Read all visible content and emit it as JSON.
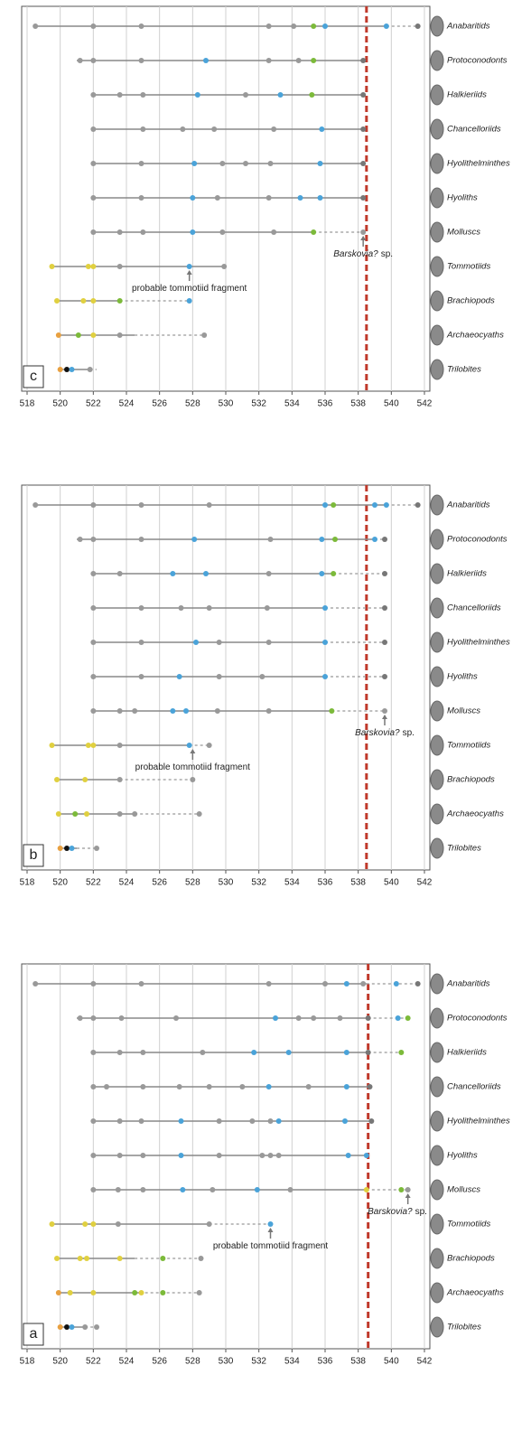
{
  "chart_data": [
    {
      "type": "range",
      "panel_label": "a",
      "xlim": [
        518,
        542
      ],
      "xticks": [
        518,
        520,
        522,
        524,
        526,
        528,
        530,
        532,
        534,
        536,
        538,
        540,
        542
      ],
      "grid": true,
      "boundary": 538.6,
      "boundary_color": "#c0392b",
      "taxa": [
        {
          "name": "Anabaritids",
          "range": [
            518.5,
            538.5
          ],
          "dashed": [
            538.5,
            541.6
          ],
          "points": [
            518.5,
            522,
            524.9,
            532.6,
            536,
            537.3,
            538.3,
            540.3,
            541.6
          ],
          "colors": [
            "#999",
            "#999",
            "#999",
            "#999",
            "#999",
            "#4aa3d9",
            "#999",
            "#4aa3d9",
            "#777"
          ]
        },
        {
          "name": "Protoconodonts",
          "range": [
            521,
            538.6
          ],
          "dashed": [
            538.6,
            541
          ],
          "points": [
            521.2,
            522,
            523.7,
            527,
            533,
            534.4,
            535.3,
            536.9,
            538.6,
            540.4,
            541
          ],
          "colors": [
            "#999",
            "#999",
            "#999",
            "#999",
            "#4aa3d9",
            "#999",
            "#999",
            "#999",
            "#777",
            "#4aa3d9",
            "#7cba3a"
          ]
        },
        {
          "name": "Halkieriids",
          "range": [
            522,
            538.6
          ],
          "dashed": [
            538.6,
            540.6
          ],
          "points": [
            522,
            523.6,
            525,
            528.6,
            531.7,
            533.8,
            537.3,
            538.6,
            540.6
          ],
          "colors": [
            "#999",
            "#999",
            "#999",
            "#999",
            "#4aa3d9",
            "#4aa3d9",
            "#4aa3d9",
            "#777",
            "#7cba3a"
          ]
        },
        {
          "name": "Chancelloriids",
          "range": [
            522,
            538.7
          ],
          "points": [
            522,
            522.8,
            525,
            527.2,
            529,
            531,
            532.6,
            535,
            537.3,
            538.7
          ],
          "colors": [
            "#999",
            "#999",
            "#999",
            "#999",
            "#999",
            "#999",
            "#4aa3d9",
            "#999",
            "#4aa3d9",
            "#777"
          ]
        },
        {
          "name": "Hyolithelminthes",
          "range": [
            522,
            538.8
          ],
          "points": [
            522,
            523.6,
            524.9,
            527.3,
            529.6,
            531.6,
            532.7,
            533.2,
            537.2,
            538.8
          ],
          "colors": [
            "#999",
            "#999",
            "#999",
            "#4aa3d9",
            "#999",
            "#999",
            "#999",
            "#4aa3d9",
            "#4aa3d9",
            "#777"
          ]
        },
        {
          "name": "Hyoliths",
          "range": [
            522,
            538.5
          ],
          "points": [
            522,
            523.6,
            525,
            527.3,
            529.6,
            532.2,
            532.7,
            533.2,
            537.4,
            538.5
          ],
          "colors": [
            "#999",
            "#999",
            "#999",
            "#4aa3d9",
            "#999",
            "#999",
            "#999",
            "#999",
            "#4aa3d9",
            "#4aa3d9"
          ]
        },
        {
          "name": "Molluscs",
          "range": [
            522,
            538.5
          ],
          "dashed": [
            538.5,
            541
          ],
          "points": [
            522,
            523.5,
            525,
            527.4,
            529.2,
            531.9,
            533.9,
            538.5,
            540.6,
            541
          ],
          "colors": [
            "#999",
            "#999",
            "#999",
            "#4aa3d9",
            "#999",
            "#4aa3d9",
            "#999",
            "#e0d040",
            "#7cba3a",
            "#999"
          ]
        },
        {
          "name": "Tommotiids",
          "range": [
            519.5,
            529
          ],
          "dashed": [
            529,
            532.7
          ],
          "points": [
            519.5,
            521.5,
            522,
            523.5,
            529,
            532.7
          ],
          "colors": [
            "#e0d040",
            "#e0d040",
            "#e0d040",
            "#999",
            "#999",
            "#4aa3d9"
          ]
        },
        {
          "name": "Brachiopods",
          "range": [
            519.8,
            524.5
          ],
          "dashed": [
            524.5,
            528.5
          ],
          "points": [
            519.8,
            521.2,
            521.6,
            523.6,
            526.2,
            528.5
          ],
          "colors": [
            "#e0d040",
            "#e0d040",
            "#e0d040",
            "#e0d040",
            "#7cba3a",
            "#999"
          ]
        },
        {
          "name": "Archaeocyaths",
          "range": [
            519.8,
            524.8
          ],
          "dashed": [
            524.8,
            528.5
          ],
          "points": [
            519.9,
            520.6,
            522,
            524.5,
            524.9,
            526.2,
            528.4
          ],
          "colors": [
            "#e8a040",
            "#e0d040",
            "#e0d040",
            "#7cba3a",
            "#e0d040",
            "#7cba3a",
            "#999"
          ]
        },
        {
          "name": "Trilobites",
          "range": [
            520,
            521.5
          ],
          "dashed": [
            521.5,
            522.2
          ],
          "points": [
            520,
            520.4,
            520.7,
            521.5,
            522.2
          ],
          "colors": [
            "#e8a040",
            "#111",
            "#4aa3d9",
            "#999",
            "#999"
          ]
        }
      ],
      "annotations": [
        {
          "text": "probable tommotiid fragment",
          "value": 532.7,
          "taxon": 7
        },
        {
          "italic": "Barskovia?",
          "text": "sp.",
          "value": 541,
          "taxon": 6
        }
      ]
    },
    {
      "type": "range",
      "panel_label": "b",
      "xlim": [
        518,
        542
      ],
      "xticks": [
        518,
        520,
        522,
        524,
        526,
        528,
        530,
        532,
        534,
        536,
        538,
        540,
        542
      ],
      "grid": true,
      "boundary": 538.5,
      "boundary_color": "#c0392b",
      "taxa": [
        {
          "name": "Anabaritids",
          "range": [
            518.5,
            539.7
          ],
          "dashed": [
            539.7,
            541.6
          ],
          "points": [
            518.5,
            522,
            524.9,
            529,
            536,
            536.5,
            539,
            539.7,
            541.6
          ],
          "colors": [
            "#999",
            "#999",
            "#999",
            "#999",
            "#4aa3d9",
            "#7cba3a",
            "#4aa3d9",
            "#4aa3d9",
            "#777"
          ]
        },
        {
          "name": "Protoconodonts",
          "range": [
            521,
            539
          ],
          "dashed": [
            539,
            539.6
          ],
          "points": [
            521.2,
            522,
            524.9,
            528.1,
            532.7,
            535.8,
            536.6,
            539,
            539.6
          ],
          "colors": [
            "#999",
            "#999",
            "#999",
            "#4aa3d9",
            "#999",
            "#4aa3d9",
            "#7cba3a",
            "#4aa3d9",
            "#777"
          ]
        },
        {
          "name": "Halkieriids",
          "range": [
            522,
            536.5
          ],
          "dashed": [
            536.5,
            539.6
          ],
          "points": [
            522,
            523.6,
            526.8,
            528.8,
            532.6,
            535.8,
            536.5,
            539.6
          ],
          "colors": [
            "#999",
            "#999",
            "#4aa3d9",
            "#4aa3d9",
            "#999",
            "#4aa3d9",
            "#7cba3a",
            "#777"
          ]
        },
        {
          "name": "Chancelloriids",
          "range": [
            522,
            536
          ],
          "dashed": [
            536,
            539.6
          ],
          "points": [
            522,
            524.9,
            527.3,
            529,
            532.5,
            536,
            539.6
          ],
          "colors": [
            "#999",
            "#999",
            "#999",
            "#999",
            "#999",
            "#4aa3d9",
            "#777"
          ]
        },
        {
          "name": "Hyolithelminthes",
          "range": [
            522,
            536
          ],
          "dashed": [
            536,
            539.6
          ],
          "points": [
            522,
            524.9,
            528.2,
            529.6,
            532.6,
            536,
            539.6
          ],
          "colors": [
            "#999",
            "#999",
            "#4aa3d9",
            "#999",
            "#999",
            "#4aa3d9",
            "#777"
          ]
        },
        {
          "name": "Hyoliths",
          "range": [
            522,
            536
          ],
          "dashed": [
            536,
            539.6
          ],
          "points": [
            522,
            524.9,
            527.2,
            529.6,
            532.2,
            536,
            539.6
          ],
          "colors": [
            "#999",
            "#999",
            "#4aa3d9",
            "#999",
            "#999",
            "#4aa3d9",
            "#777"
          ]
        },
        {
          "name": "Molluscs",
          "range": [
            522,
            536.4
          ],
          "dashed": [
            536.4,
            539.6
          ],
          "points": [
            522,
            523.6,
            524.5,
            526.8,
            527.6,
            529.5,
            532.6,
            536.4,
            539.6
          ],
          "colors": [
            "#999",
            "#999",
            "#999",
            "#4aa3d9",
            "#4aa3d9",
            "#999",
            "#999",
            "#7cba3a",
            "#999"
          ]
        },
        {
          "name": "Tommotiids",
          "range": [
            519.5,
            527.8
          ],
          "dashed": [
            527.8,
            529
          ],
          "points": [
            519.5,
            521.7,
            522,
            523.6,
            527.8,
            529
          ],
          "colors": [
            "#e0d040",
            "#e0d040",
            "#e0d040",
            "#999",
            "#4aa3d9",
            "#999"
          ]
        },
        {
          "name": "Brachiopods",
          "range": [
            519.8,
            523.6
          ],
          "dashed": [
            523.6,
            528
          ],
          "points": [
            519.8,
            521.5,
            523.6,
            528
          ],
          "colors": [
            "#e0d040",
            "#e0d040",
            "#999",
            "#999"
          ]
        },
        {
          "name": "Archaeocyaths",
          "range": [
            519.8,
            524.5
          ],
          "dashed": [
            524.5,
            528.5
          ],
          "points": [
            519.9,
            520.9,
            521.6,
            523.6,
            524.5,
            528.4
          ],
          "colors": [
            "#e0d040",
            "#7cba3a",
            "#e0d040",
            "#999",
            "#999",
            "#999"
          ]
        },
        {
          "name": "Trilobites",
          "range": [
            520,
            521
          ],
          "dashed": [
            521,
            522.2
          ],
          "points": [
            520,
            520.4,
            520.7,
            522.2
          ],
          "colors": [
            "#e8a040",
            "#111",
            "#4aa3d9",
            "#999"
          ]
        }
      ],
      "annotations": [
        {
          "text": "probable tommotiid fragment",
          "value": 528,
          "taxon": 7
        },
        {
          "italic": "Barskovia?",
          "text": "sp.",
          "value": 539.6,
          "taxon": 6
        }
      ]
    },
    {
      "type": "range",
      "panel_label": "c",
      "xlim": [
        518,
        542
      ],
      "xticks": [
        518,
        520,
        522,
        524,
        526,
        528,
        530,
        532,
        534,
        536,
        538,
        540,
        542
      ],
      "grid": true,
      "boundary": 538.5,
      "boundary_color": "#c0392b",
      "taxa": [
        {
          "name": "Anabaritids",
          "range": [
            518.5,
            539.7
          ],
          "dashed": [
            539.7,
            541.6
          ],
          "points": [
            518.5,
            522,
            524.9,
            532.6,
            534.1,
            535.3,
            536,
            539.7,
            541.6
          ],
          "colors": [
            "#999",
            "#999",
            "#999",
            "#999",
            "#999",
            "#7cba3a",
            "#4aa3d9",
            "#4aa3d9",
            "#777"
          ]
        },
        {
          "name": "Protoconodonts",
          "range": [
            521,
            538.3
          ],
          "points": [
            521.2,
            522,
            524.9,
            528.8,
            532.6,
            534.4,
            535.3,
            538.3
          ],
          "colors": [
            "#999",
            "#999",
            "#999",
            "#4aa3d9",
            "#999",
            "#999",
            "#7cba3a",
            "#777"
          ]
        },
        {
          "name": "Halkieriids",
          "range": [
            522,
            538.3
          ],
          "points": [
            522,
            523.6,
            525,
            528.3,
            531.2,
            533.3,
            535.2,
            538.3
          ],
          "colors": [
            "#999",
            "#999",
            "#999",
            "#4aa3d9",
            "#999",
            "#4aa3d9",
            "#7cba3a",
            "#777"
          ]
        },
        {
          "name": "Chancelloriids",
          "range": [
            522,
            538.3
          ],
          "points": [
            522,
            525,
            527.4,
            529.3,
            532.9,
            535.8,
            538.3
          ],
          "colors": [
            "#999",
            "#999",
            "#999",
            "#999",
            "#999",
            "#4aa3d9",
            "#777"
          ]
        },
        {
          "name": "Hyolithelminthes",
          "range": [
            522,
            538.3
          ],
          "points": [
            522,
            524.9,
            528.1,
            529.8,
            531.2,
            532.7,
            535.7,
            538.3
          ],
          "colors": [
            "#999",
            "#999",
            "#4aa3d9",
            "#999",
            "#999",
            "#999",
            "#4aa3d9",
            "#777"
          ]
        },
        {
          "name": "Hyoliths",
          "range": [
            522,
            538.3
          ],
          "points": [
            522,
            524.9,
            528,
            529.5,
            532.6,
            534.5,
            535.7,
            538.3
          ],
          "colors": [
            "#999",
            "#999",
            "#4aa3d9",
            "#999",
            "#999",
            "#4aa3d9",
            "#4aa3d9",
            "#777"
          ]
        },
        {
          "name": "Molluscs",
          "range": [
            522,
            535.3
          ],
          "dashed": [
            535.3,
            538.3
          ],
          "points": [
            522,
            523.6,
            525,
            528,
            529.8,
            532.9,
            535.3,
            538.3
          ],
          "colors": [
            "#999",
            "#999",
            "#999",
            "#4aa3d9",
            "#999",
            "#999",
            "#7cba3a",
            "#999"
          ]
        },
        {
          "name": "Tommotiids",
          "range": [
            519.5,
            529.9
          ],
          "points": [
            519.5,
            521.7,
            522,
            523.6,
            527.8,
            529.9
          ],
          "colors": [
            "#e0d040",
            "#e0d040",
            "#e0d040",
            "#999",
            "#4aa3d9",
            "#999"
          ]
        },
        {
          "name": "Brachiopods",
          "range": [
            519.8,
            523.6
          ],
          "dashed": [
            523.6,
            527.8
          ],
          "points": [
            519.8,
            521.4,
            522,
            523.6,
            527.8
          ],
          "colors": [
            "#e0d040",
            "#e0d040",
            "#e0d040",
            "#7cba3a",
            "#4aa3d9"
          ]
        },
        {
          "name": "Archaeocyaths",
          "range": [
            519.8,
            524.5
          ],
          "dashed": [
            524.5,
            528.7
          ],
          "points": [
            519.9,
            521.1,
            522,
            523.6,
            528.7
          ],
          "colors": [
            "#e8a040",
            "#7cba3a",
            "#e0d040",
            "#999",
            "#999"
          ]
        },
        {
          "name": "Trilobites",
          "range": [
            520,
            521.8
          ],
          "dashed": [
            521.8,
            522.2
          ],
          "points": [
            520,
            520.4,
            520.7,
            521.8
          ],
          "colors": [
            "#e8a040",
            "#111",
            "#4aa3d9",
            "#999"
          ]
        }
      ],
      "annotations": [
        {
          "text": "probable tommotiid fragment",
          "value": 527.8,
          "taxon": 7
        },
        {
          "italic": "Barskovia?",
          "text": "sp.",
          "value": 538.3,
          "taxon": 6
        }
      ]
    }
  ]
}
